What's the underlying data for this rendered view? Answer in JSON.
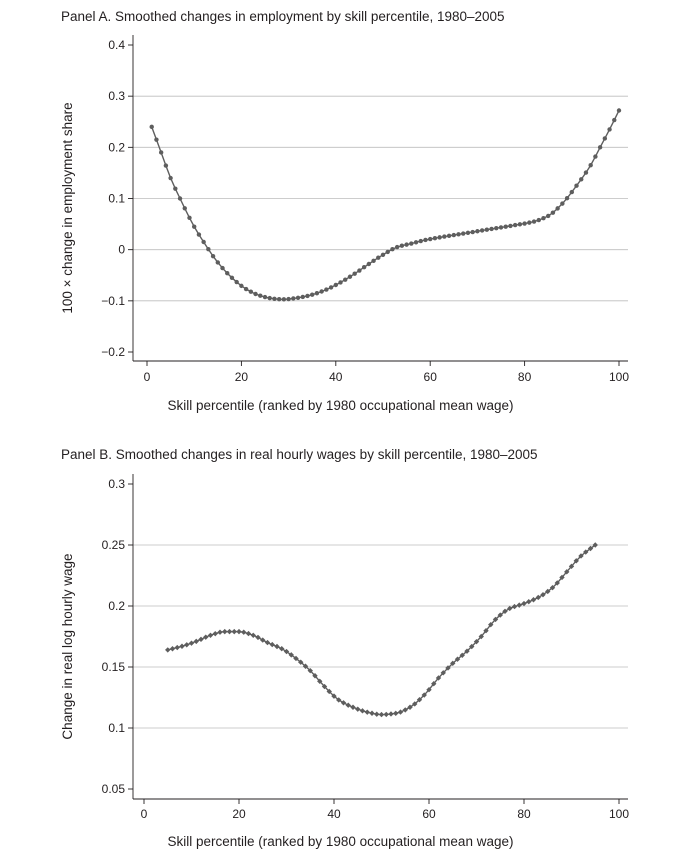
{
  "chart_data": [
    {
      "type": "line",
      "title": "Panel A. Smoothed changes in employment by skill percentile, 1980–2005",
      "xlabel": "Skill percentile (ranked by 1980 occupational mean wage)",
      "ylabel": "100 × change in employment share",
      "xlim": [
        0,
        100
      ],
      "ylim": [
        -0.2,
        0.4
      ],
      "xticks": [
        0,
        20,
        40,
        60,
        80,
        100
      ],
      "xtick_labels": [
        "0",
        "20",
        "40",
        "60",
        "80",
        "100"
      ],
      "yticks": [
        -0.2,
        -0.1,
        0,
        0.1,
        0.2,
        0.3,
        0.4
      ],
      "ytick_labels": [
        "−0.2",
        "−0.1",
        "0",
        "0.1",
        "0.2",
        "0.3",
        "0.4"
      ],
      "grid": "horizontal",
      "marker": "circle",
      "line_color": "#5e5e5e",
      "x_range": [
        1,
        100
      ],
      "anchors": [
        [
          1,
          0.24
        ],
        [
          2,
          0.215
        ],
        [
          3,
          0.19
        ],
        [
          5,
          0.14
        ],
        [
          7,
          0.1
        ],
        [
          10,
          0.045
        ],
        [
          12,
          0.015
        ],
        [
          15,
          -0.025
        ],
        [
          18,
          -0.055
        ],
        [
          21,
          -0.077
        ],
        [
          24,
          -0.09
        ],
        [
          27,
          -0.096
        ],
        [
          29,
          -0.097
        ],
        [
          32,
          -0.094
        ],
        [
          35,
          -0.088
        ],
        [
          38,
          -0.078
        ],
        [
          41,
          -0.064
        ],
        [
          44,
          -0.047
        ],
        [
          47,
          -0.028
        ],
        [
          50,
          -0.01
        ],
        [
          53,
          0.005
        ],
        [
          56,
          0.012
        ],
        [
          59,
          0.019
        ],
        [
          62,
          0.024
        ],
        [
          66,
          0.03
        ],
        [
          70,
          0.036
        ],
        [
          74,
          0.042
        ],
        [
          78,
          0.048
        ],
        [
          82,
          0.055
        ],
        [
          85,
          0.066
        ],
        [
          88,
          0.09
        ],
        [
          91,
          0.125
        ],
        [
          94,
          0.165
        ],
        [
          96,
          0.2
        ],
        [
          98,
          0.235
        ],
        [
          100,
          0.272
        ]
      ]
    },
    {
      "type": "line",
      "title": "Panel B. Smoothed changes in real hourly wages by skill percentile, 1980–2005",
      "xlabel": "Skill percentile (ranked by 1980 occupational mean wage)",
      "ylabel": "Change in real log hourly wage",
      "xlim": [
        0,
        100
      ],
      "ylim": [
        0.05,
        0.3
      ],
      "xticks": [
        0,
        20,
        40,
        60,
        80,
        100
      ],
      "xtick_labels": [
        "0",
        "20",
        "40",
        "60",
        "80",
        "100"
      ],
      "yticks": [
        0.05,
        0.1,
        0.15,
        0.2,
        0.25,
        0.3
      ],
      "ytick_labels": [
        "0.05",
        "0.1",
        "0.15",
        "0.2",
        "0.25",
        "0.3"
      ],
      "grid": "horizontal",
      "marker": "diamond",
      "line_color": "#5e5e5e",
      "x_range": [
        5,
        95
      ],
      "anchors": [
        [
          5,
          0.164
        ],
        [
          8,
          0.167
        ],
        [
          11,
          0.171
        ],
        [
          14,
          0.176
        ],
        [
          17,
          0.179
        ],
        [
          20,
          0.179
        ],
        [
          23,
          0.176
        ],
        [
          26,
          0.17
        ],
        [
          29,
          0.165
        ],
        [
          32,
          0.157
        ],
        [
          35,
          0.147
        ],
        [
          38,
          0.134
        ],
        [
          41,
          0.123
        ],
        [
          44,
          0.117
        ],
        [
          47,
          0.113
        ],
        [
          50,
          0.111
        ],
        [
          53,
          0.112
        ],
        [
          56,
          0.117
        ],
        [
          59,
          0.127
        ],
        [
          62,
          0.141
        ],
        [
          65,
          0.153
        ],
        [
          68,
          0.163
        ],
        [
          71,
          0.175
        ],
        [
          74,
          0.189
        ],
        [
          77,
          0.198
        ],
        [
          80,
          0.202
        ],
        [
          83,
          0.207
        ],
        [
          86,
          0.215
        ],
        [
          89,
          0.228
        ],
        [
          92,
          0.241
        ],
        [
          95,
          0.25
        ]
      ]
    }
  ]
}
